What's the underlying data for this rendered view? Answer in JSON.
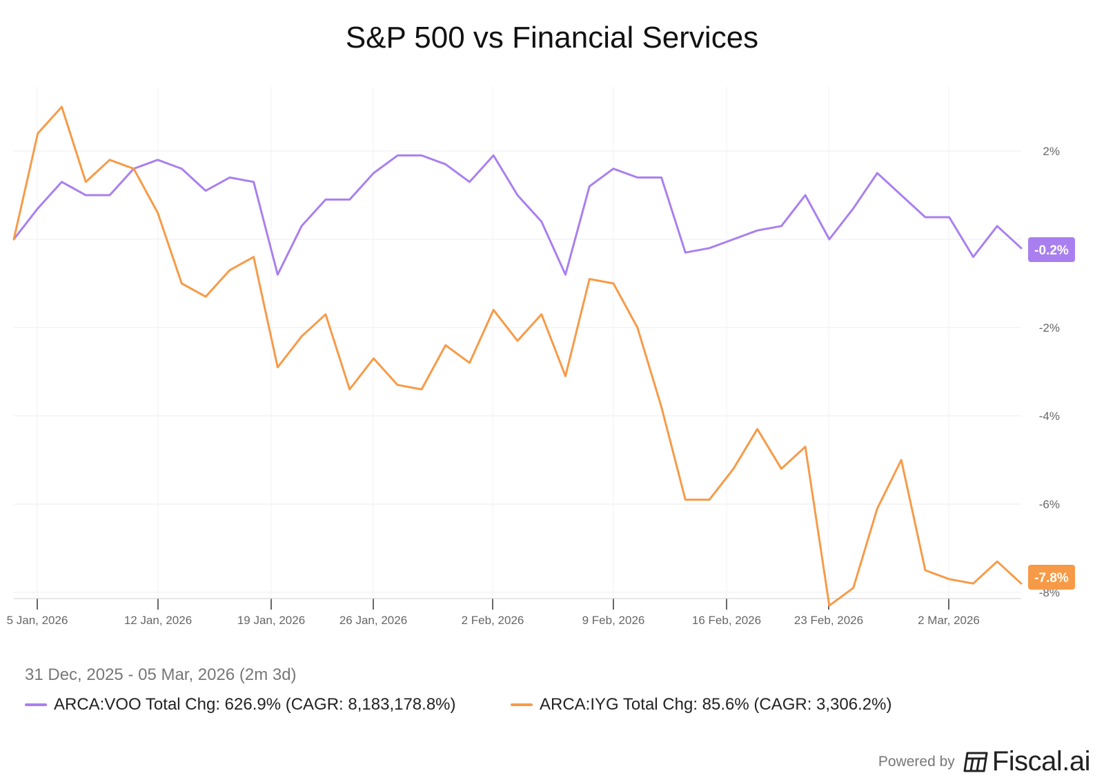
{
  "chart_data": {
    "type": "line",
    "title": "S&P 500 vs Financial Services",
    "date_range": "31 Dec, 2025 - 05 Mar, 2026 (2m 3d)",
    "x_ticks": [
      "5 Jan, 2026",
      "12 Jan, 2026",
      "19 Jan, 2026",
      "26 Jan, 2026",
      "2 Feb, 2026",
      "9 Feb, 2026",
      "16 Feb, 2026",
      "23 Feb, 2026",
      "2 Mar, 2026"
    ],
    "y_ticks": [
      "2%",
      "-2%",
      "-4%",
      "-6%",
      "-8%"
    ],
    "ylim": [
      -8.3,
      3.5
    ],
    "grid": true,
    "series": [
      {
        "name": "ARCA:VOO",
        "color": "#a97ff0",
        "end_label": "-0.2%",
        "legend": "ARCA:VOO Total Chg: 626.9% (CAGR: 8,183,178.8%)",
        "values": [
          0.0,
          0.7,
          1.3,
          1.0,
          1.0,
          1.6,
          1.8,
          1.6,
          1.1,
          1.4,
          1.3,
          -0.8,
          0.3,
          0.9,
          0.9,
          1.5,
          1.9,
          1.9,
          1.7,
          1.3,
          1.9,
          1.0,
          0.4,
          -0.8,
          1.2,
          1.6,
          1.4,
          1.4,
          -0.3,
          -0.2,
          -0.0,
          0.2,
          0.3,
          1.0,
          0.0,
          0.7,
          1.5,
          1.0,
          0.5,
          0.5,
          -0.4,
          0.3,
          -0.2
        ]
      },
      {
        "name": "ARCA:IYG",
        "color": "#f79a47",
        "end_label": "-7.8%",
        "legend": "ARCA:IYG Total Chg: 85.6% (CAGR: 3,306.2%)",
        "values": [
          0.0,
          2.4,
          3.0,
          1.3,
          1.8,
          1.6,
          0.6,
          -1.0,
          -1.3,
          -0.7,
          -0.4,
          -2.9,
          -2.2,
          -1.7,
          -3.4,
          -2.7,
          -3.3,
          -3.4,
          -2.4,
          -2.8,
          -1.6,
          -2.3,
          -1.7,
          -3.1,
          -0.9,
          -1.0,
          -2.0,
          -3.8,
          -5.9,
          -5.9,
          -5.2,
          -4.3,
          -5.2,
          -4.7,
          -8.3,
          -7.9,
          -6.1,
          -5.0,
          -7.5,
          -7.7,
          -7.8,
          -7.3,
          -7.8
        ]
      }
    ]
  },
  "footer": {
    "powered_by": "Powered by",
    "brand": "Fiscal.ai"
  }
}
